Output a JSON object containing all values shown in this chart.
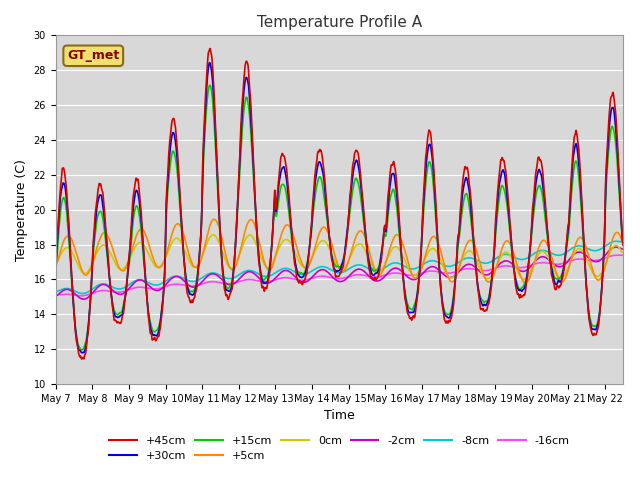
{
  "title": "Temperature Profile A",
  "xlabel": "Time",
  "ylabel": "Temperature (C)",
  "ylim": [
    10,
    30
  ],
  "yticks": [
    10,
    12,
    14,
    16,
    18,
    20,
    22,
    24,
    26,
    28,
    30
  ],
  "bg_color": "#d8d8d8",
  "legend_label": "GT_met",
  "series_order": [
    "+45cm",
    "+30cm",
    "+15cm",
    "+5cm",
    "0cm",
    "-2cm",
    "-8cm",
    "-16cm"
  ],
  "series": {
    "+45cm": {
      "color": "#dd0000",
      "lw": 1.2
    },
    "+30cm": {
      "color": "#0000dd",
      "lw": 1.2
    },
    "+15cm": {
      "color": "#00cc00",
      "lw": 1.2
    },
    "+5cm": {
      "color": "#ff8800",
      "lw": 1.2
    },
    "0cm": {
      "color": "#cccc00",
      "lw": 1.2
    },
    "-2cm": {
      "color": "#cc00cc",
      "lw": 1.2
    },
    "-8cm": {
      "color": "#00cccc",
      "lw": 1.2
    },
    "-16cm": {
      "color": "#ff44ff",
      "lw": 1.2
    }
  },
  "xtick_labels": [
    "May 7",
    "May 8",
    "May 9",
    "May 10",
    "May 11",
    "May 12",
    "May 13",
    "May 14",
    "May 15",
    "May 16",
    "May 17",
    "May 18",
    "May 19",
    "May 20",
    "May 21",
    "May 22"
  ],
  "n_days": 15.5,
  "points_per_day": 96
}
